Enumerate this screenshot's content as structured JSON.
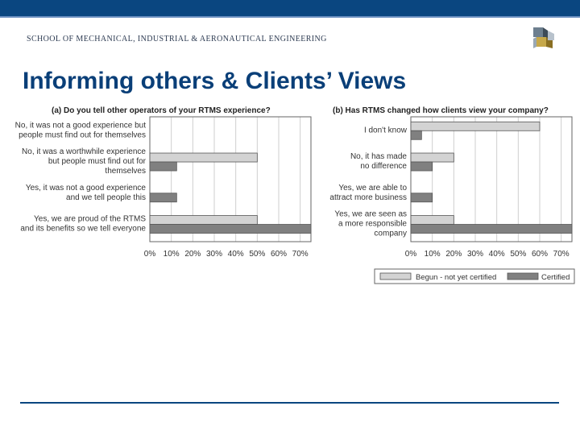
{
  "header": {
    "school_name": "SCHOOL OF MECHANICAL, INDUSTRIAL & AERONAUTICAL ENGINEERING",
    "slide_title": "Informing others & Clients’ Views"
  },
  "colors": {
    "banner": "#0a4680",
    "title": "#0a3f78",
    "series_begun": "#d3d3d3",
    "series_certified": "#808080"
  },
  "chart_data": [
    {
      "type": "bar",
      "orientation": "horizontal",
      "title": "(a) Do you tell other operators of your RTMS experience?",
      "categories": [
        [
          "No, it was not a good experience but",
          "people must find out for themselves"
        ],
        [
          "No, it was a worthwhile experience",
          "but people must find out for",
          "themselves"
        ],
        [
          "Yes, it was not a good experience",
          "and we tell people this"
        ],
        [
          "Yes, we are proud of the RTMS",
          "and its benefits so we tell everyone"
        ]
      ],
      "series": [
        {
          "name": "Begun - not yet certified",
          "values": [
            0,
            50,
            0,
            50
          ]
        },
        {
          "name": "Certified",
          "values": [
            0,
            12.5,
            12.5,
            75
          ]
        }
      ],
      "xlim": [
        0,
        75
      ],
      "xticks": [
        "0%",
        "10%",
        "20%",
        "30%",
        "40%",
        "50%",
        "60%",
        "70%"
      ],
      "grid": true
    },
    {
      "type": "bar",
      "orientation": "horizontal",
      "title": "(b) Has RTMS changed how clients view your company?",
      "categories": [
        [
          "I don't know"
        ],
        [
          "No, it has made",
          "no difference"
        ],
        [
          "Yes, we are able to",
          "attract more business"
        ],
        [
          "Yes, we are seen as",
          "a more responsible",
          "company"
        ]
      ],
      "series": [
        {
          "name": "Begun - not yet certified",
          "values": [
            60,
            20,
            0,
            20
          ]
        },
        {
          "name": "Certified",
          "values": [
            5,
            10,
            10,
            75
          ]
        }
      ],
      "xlim": [
        0,
        75
      ],
      "xticks": [
        "0%",
        "10%",
        "20%",
        "30%",
        "40%",
        "50%",
        "60%",
        "70%"
      ],
      "grid": true
    }
  ],
  "legend": {
    "placement": "bottom-right",
    "items": [
      "Begun - not yet certified",
      "Certified"
    ]
  }
}
